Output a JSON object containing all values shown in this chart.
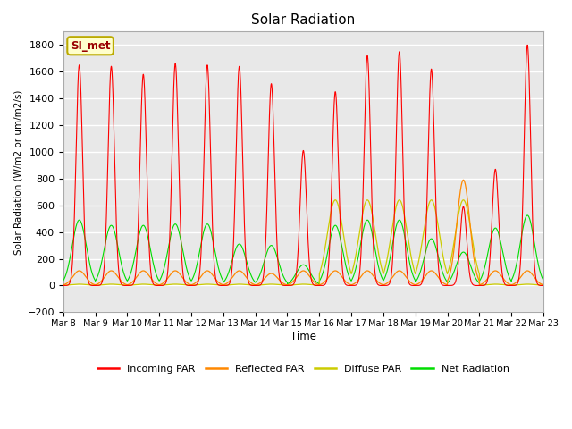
{
  "title": "Solar Radiation",
  "ylabel": "Solar Radiation (W/m2 or um/m2/s)",
  "xlabel": "Time",
  "ylim": [
    -200,
    1900
  ],
  "yticks": [
    -200,
    0,
    200,
    400,
    600,
    800,
    1000,
    1200,
    1400,
    1600,
    1800
  ],
  "fig_bg_color": "#ffffff",
  "plot_bg_color": "#e8e8e8",
  "grid_color": "#ffffff",
  "colors": {
    "incoming": "#ff0000",
    "reflected": "#ff8800",
    "diffuse": "#cccc00",
    "net": "#00dd00"
  },
  "legend_labels": [
    "Incoming PAR",
    "Reflected PAR",
    "Diffuse PAR",
    "Net Radiation"
  ],
  "annotation_text": "SI_met",
  "annotation_bg": "#ffffcc",
  "annotation_border": "#bbaa00",
  "n_days": 15,
  "start_day": 8,
  "peaks_incoming": [
    1650,
    1640,
    1580,
    1660,
    1650,
    1640,
    1510,
    1010,
    1450,
    1720,
    1750,
    1620,
    590,
    870,
    1800
  ],
  "peaks_reflected": [
    110,
    110,
    110,
    110,
    110,
    110,
    90,
    110,
    110,
    110,
    110,
    110,
    790,
    110,
    110
  ],
  "peaks_diffuse": [
    10,
    10,
    10,
    10,
    10,
    10,
    10,
    10,
    640,
    640,
    640,
    640,
    640,
    10,
    10
  ],
  "peaks_net": [
    490,
    450,
    450,
    460,
    460,
    310,
    300,
    155,
    450,
    490,
    490,
    350,
    250,
    430,
    525
  ],
  "night_net": -100,
  "night_net_last_days": -100
}
